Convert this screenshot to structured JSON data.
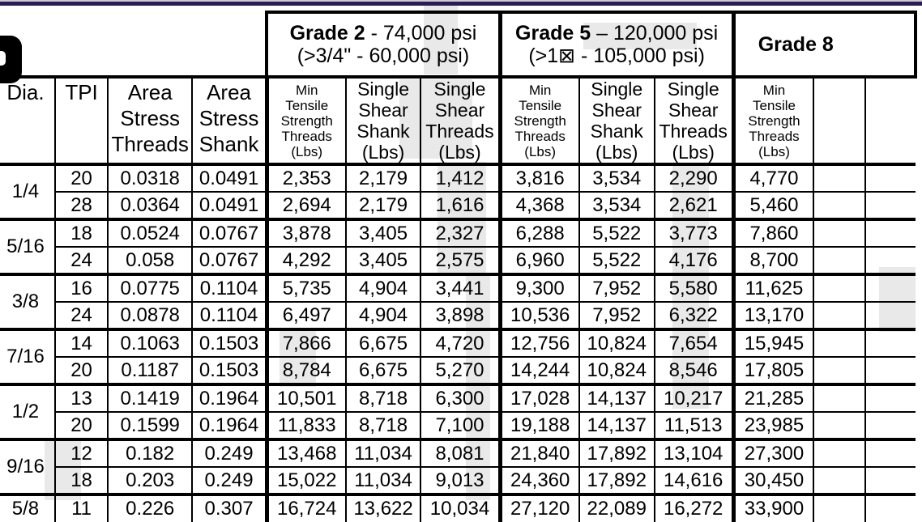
{
  "colors": {
    "accent_bar_dark": "#2b1d4f",
    "accent_bar_light": "#cfc9de",
    "grid_line": "#000000",
    "watermark": "#e9e9e9",
    "paper": "#ffffff",
    "badge": "#000000"
  },
  "table": {
    "left_headers": [
      [
        "Dia."
      ],
      [
        "TPI"
      ],
      [
        "Area",
        "Stress",
        "Threads"
      ],
      [
        "Area",
        "Stress",
        "Shank"
      ]
    ],
    "grades": [
      {
        "name": "Grade 2",
        "spec": " - 74,000 psi",
        "alt": "(>3/4\" - 60,000 psi)",
        "cols": [
          [
            "Min",
            "Tensile",
            "Strength",
            "Threads",
            "(Lbs)"
          ],
          [
            "Single",
            "Shear",
            "Shank",
            "(Lbs)"
          ],
          [
            "Single",
            "Shear",
            "Threads",
            "(Lbs)"
          ]
        ]
      },
      {
        "name": "Grade 5",
        "spec": " – 120,000 psi",
        "alt": "(>1⊠ - 105,000 psi)",
        "cols": [
          [
            "Min",
            "Tensile",
            "Strength",
            "Threads",
            "(Lbs)"
          ],
          [
            "Single",
            "Shear",
            "Shank",
            "(Lbs)"
          ],
          [
            "Single",
            "Shear",
            "Threads",
            "(Lbs)"
          ]
        ]
      },
      {
        "name": "Grade 8",
        "spec": "",
        "alt": "",
        "cols": [
          [
            "Min",
            "Tensile",
            "Strength",
            "Threads",
            "(Lbs)"
          ]
        ]
      }
    ],
    "rows": [
      {
        "dia": "1/4",
        "tpi": "20",
        "area_threads": "0.0318",
        "area_shank": "0.0491",
        "g2": [
          "2,353",
          "2,179",
          "1,412"
        ],
        "g5": [
          "3,816",
          "3,534",
          "2,290"
        ],
        "g8": [
          "4,770"
        ],
        "group_start": true
      },
      {
        "dia": "",
        "tpi": "28",
        "area_threads": "0.0364",
        "area_shank": "0.0491",
        "g2": [
          "2,694",
          "2,179",
          "1,616"
        ],
        "g5": [
          "4,368",
          "3,534",
          "2,621"
        ],
        "g8": [
          "5,460"
        ],
        "group_start": false
      },
      {
        "dia": "5/16",
        "tpi": "18",
        "area_threads": "0.0524",
        "area_shank": "0.0767",
        "g2": [
          "3,878",
          "3,405",
          "2,327"
        ],
        "g5": [
          "6,288",
          "5,522",
          "3,773"
        ],
        "g8": [
          "7,860"
        ],
        "group_start": true
      },
      {
        "dia": "",
        "tpi": "24",
        "area_threads": "0.058",
        "area_shank": "0.0767",
        "g2": [
          "4,292",
          "3,405",
          "2,575"
        ],
        "g5": [
          "6,960",
          "5,522",
          "4,176"
        ],
        "g8": [
          "8,700"
        ],
        "group_start": false
      },
      {
        "dia": "3/8",
        "tpi": "16",
        "area_threads": "0.0775",
        "area_shank": "0.1104",
        "g2": [
          "5,735",
          "4,904",
          "3,441"
        ],
        "g5": [
          "9,300",
          "7,952",
          "5,580"
        ],
        "g8": [
          "11,625"
        ],
        "group_start": true
      },
      {
        "dia": "",
        "tpi": "24",
        "area_threads": "0.0878",
        "area_shank": "0.1104",
        "g2": [
          "6,497",
          "4,904",
          "3,898"
        ],
        "g5": [
          "10,536",
          "7,952",
          "6,322"
        ],
        "g8": [
          "13,170"
        ],
        "group_start": false
      },
      {
        "dia": "7/16",
        "tpi": "14",
        "area_threads": "0.1063",
        "area_shank": "0.1503",
        "g2": [
          "7,866",
          "6,675",
          "4,720"
        ],
        "g5": [
          "12,756",
          "10,824",
          "7,654"
        ],
        "g8": [
          "15,945"
        ],
        "group_start": true
      },
      {
        "dia": "",
        "tpi": "20",
        "area_threads": "0.1187",
        "area_shank": "0.1503",
        "g2": [
          "8,784",
          "6,675",
          "5,270"
        ],
        "g5": [
          "14,244",
          "10,824",
          "8,546"
        ],
        "g8": [
          "17,805"
        ],
        "group_start": false
      },
      {
        "dia": "1/2",
        "tpi": "13",
        "area_threads": "0.1419",
        "area_shank": "0.1964",
        "g2": [
          "10,501",
          "8,718",
          "6,300"
        ],
        "g5": [
          "17,028",
          "14,137",
          "10,217"
        ],
        "g8": [
          "21,285"
        ],
        "group_start": true
      },
      {
        "dia": "",
        "tpi": "20",
        "area_threads": "0.1599",
        "area_shank": "0.1964",
        "g2": [
          "11,833",
          "8,718",
          "7,100"
        ],
        "g5": [
          "19,188",
          "14,137",
          "11,513"
        ],
        "g8": [
          "23,985"
        ],
        "group_start": false
      },
      {
        "dia": "9/16",
        "tpi": "12",
        "area_threads": "0.182",
        "area_shank": "0.249",
        "g2": [
          "13,468",
          "11,034",
          "8,081"
        ],
        "g5": [
          "21,840",
          "17,892",
          "13,104"
        ],
        "g8": [
          "27,300"
        ],
        "group_start": true
      },
      {
        "dia": "",
        "tpi": "18",
        "area_threads": "0.203",
        "area_shank": "0.249",
        "g2": [
          "15,022",
          "11,034",
          "9,013"
        ],
        "g5": [
          "24,360",
          "17,892",
          "14,616"
        ],
        "g8": [
          "30,450"
        ],
        "group_start": false
      },
      {
        "dia": "5/8",
        "tpi": "11",
        "area_threads": "0.226",
        "area_shank": "0.307",
        "g2": [
          "16,724",
          "13,622",
          "10,034"
        ],
        "g5": [
          "27,120",
          "22,089",
          "16,272"
        ],
        "g8": [
          "33,900"
        ],
        "group_start": true
      }
    ]
  }
}
